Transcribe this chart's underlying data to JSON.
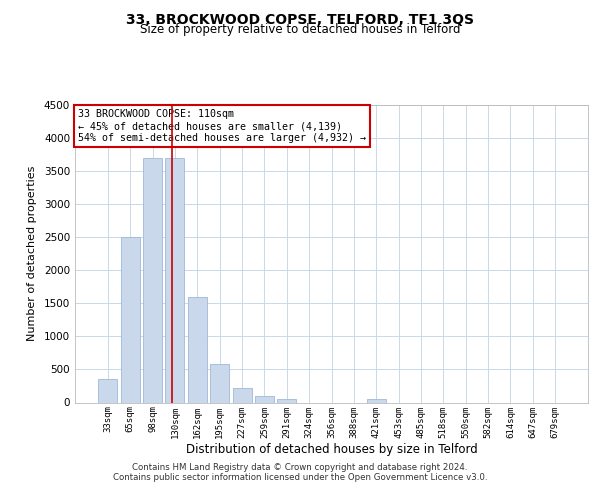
{
  "title1": "33, BROCKWOOD COPSE, TELFORD, TF1 3QS",
  "title2": "Size of property relative to detached houses in Telford",
  "xlabel": "Distribution of detached houses by size in Telford",
  "ylabel": "Number of detached properties",
  "categories": [
    "33sqm",
    "65sqm",
    "98sqm",
    "130sqm",
    "162sqm",
    "195sqm",
    "227sqm",
    "259sqm",
    "291sqm",
    "324sqm",
    "356sqm",
    "388sqm",
    "421sqm",
    "453sqm",
    "485sqm",
    "518sqm",
    "550sqm",
    "582sqm",
    "614sqm",
    "647sqm",
    "679sqm"
  ],
  "values": [
    350,
    2500,
    3700,
    3700,
    1600,
    575,
    225,
    100,
    55,
    0,
    0,
    0,
    55,
    0,
    0,
    0,
    0,
    0,
    0,
    0,
    0
  ],
  "bar_color": "#c9d9eb",
  "bar_edge_color": "#a0b8d8",
  "red_line_x": 2.85,
  "annotation_text": "33 BROCKWOOD COPSE: 110sqm\n← 45% of detached houses are smaller (4,139)\n54% of semi-detached houses are larger (4,932) →",
  "annotation_box_color": "#ffffff",
  "annotation_border_color": "#cc0000",
  "ylim": [
    0,
    4500
  ],
  "yticks": [
    0,
    500,
    1000,
    1500,
    2000,
    2500,
    3000,
    3500,
    4000,
    4500
  ],
  "footnote1": "Contains HM Land Registry data © Crown copyright and database right 2024.",
  "footnote2": "Contains public sector information licensed under the Open Government Licence v3.0.",
  "background_color": "#ffffff",
  "grid_color": "#c8d8e8"
}
